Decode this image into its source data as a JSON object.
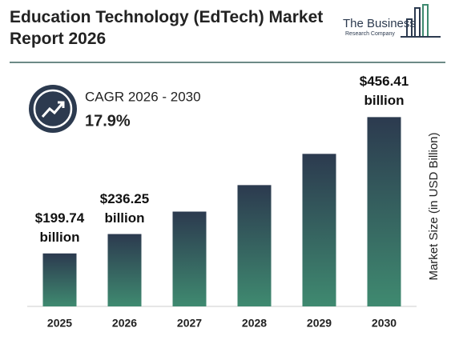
{
  "chart_data": {
    "type": "bar",
    "title": "Education Technology (EdTech) Market Report 2026",
    "categories": [
      "2025",
      "2026",
      "2027",
      "2028",
      "2029",
      "2030"
    ],
    "values": [
      199.74,
      236.25,
      278.5,
      328.4,
      387.2,
      456.41
    ],
    "value_labels": [
      "$199.74 billion",
      "$236.25 billion",
      null,
      null,
      null,
      "$456.41 billion"
    ],
    "ylabel": "Market Size (in USD Billion)",
    "ylim": [
      100,
      460
    ],
    "color": [
      "#2c3a4f",
      "#3f8a70"
    ],
    "cagr_label": "CAGR 2026 - 2030",
    "cagr_value": "17.9%"
  },
  "logo": {
    "name": "The Business",
    "tagline": "Research Company"
  }
}
